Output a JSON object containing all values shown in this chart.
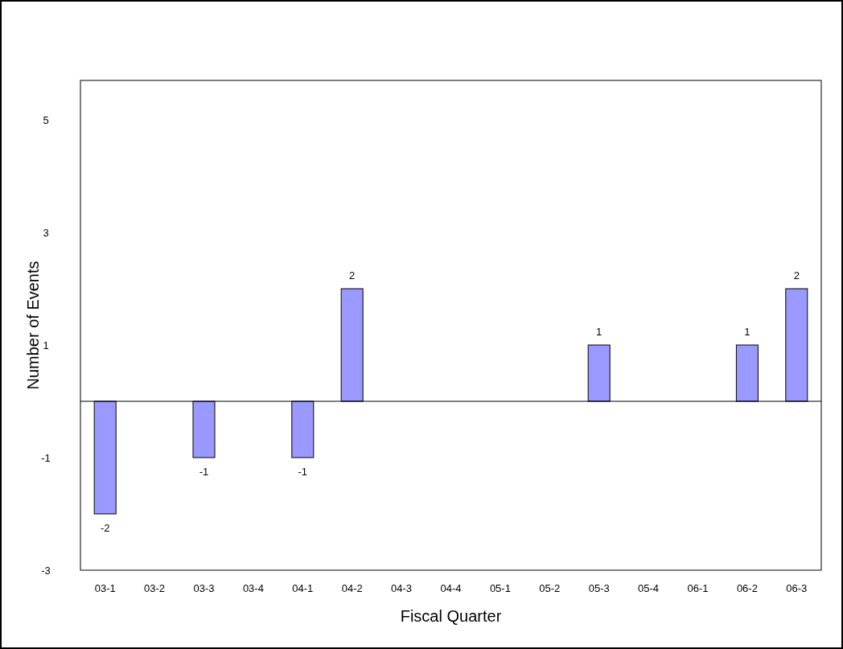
{
  "chart_data": {
    "type": "bar",
    "xlabel": "Fiscal Quarter",
    "ylabel": "Number of Events",
    "categories": [
      "03-1",
      "03-2",
      "03-3",
      "03-4",
      "04-1",
      "04-2",
      "04-3",
      "04-4",
      "05-1",
      "05-2",
      "05-3",
      "05-4",
      "06-1",
      "06-2",
      "06-3"
    ],
    "values": [
      -2,
      0,
      -1,
      0,
      -1,
      2,
      0,
      0,
      0,
      0,
      1,
      0,
      0,
      1,
      2
    ],
    "value_labels": [
      "-2",
      null,
      "-1",
      null,
      "-1",
      "2",
      null,
      null,
      null,
      null,
      "1",
      null,
      null,
      "1",
      "2"
    ],
    "color": "#9999ff",
    "ylim": [
      -3,
      5.7
    ],
    "yticks": [
      -3,
      -1,
      1,
      3,
      5
    ],
    "grid": false
  }
}
